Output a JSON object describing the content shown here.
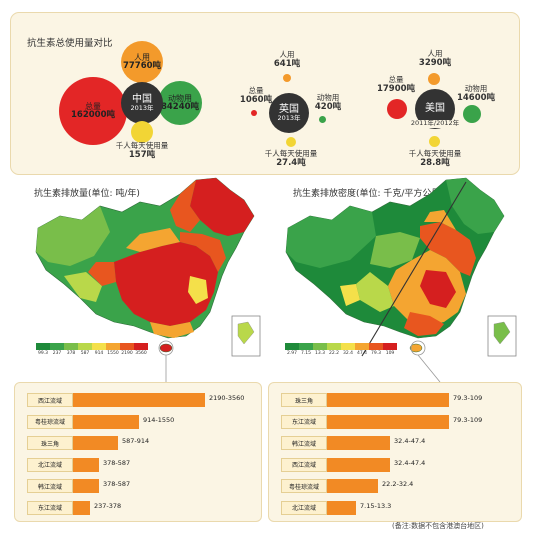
{
  "compare": {
    "title": "抗生素总使用量对比",
    "china": {
      "name": "中国",
      "year": "2013年",
      "total_label": "总量",
      "total_value": "162000吨",
      "human_label": "人用",
      "human_value": "77760吨",
      "animal_label": "动物用",
      "animal_value": "84240吨",
      "daily_label": "千人每天使用量",
      "daily_value": "157吨"
    },
    "uk": {
      "name": "英国",
      "year": "2013年",
      "total_label": "总量",
      "total_value": "1060吨",
      "human_label": "人用",
      "human_value": "641吨",
      "animal_label": "动物用",
      "animal_value": "420吨",
      "daily_label": "千人每天使用量",
      "daily_value": "27.4吨"
    },
    "usa": {
      "name": "美国",
      "year": "2011年/2012年",
      "total_label": "总量",
      "total_value": "17900吨",
      "human_label": "人用",
      "human_value": "3290吨",
      "animal_label": "动物用",
      "animal_value": "14600吨",
      "daily_label": "千人每天使用量",
      "daily_value": "28.8吨"
    },
    "colors": {
      "human": "#f39a2b",
      "animal": "#3aa34a",
      "total": "#e32626",
      "daily": "#f2d535",
      "center": "#333333"
    }
  },
  "map_left": {
    "title": "抗生素排放量(单位: 吨/年)",
    "legend": [
      "99.3",
      "237",
      "378",
      "587",
      "914",
      "1550",
      "2190",
      "3560"
    ],
    "legend_colors": [
      "#1e8a3a",
      "#3aa34a",
      "#79be4a",
      "#b9d84a",
      "#f4e04a",
      "#f4a531",
      "#e8561f",
      "#d51f1f"
    ]
  },
  "map_right": {
    "title": "抗生素排放密度(单位: 千克/平方公里·年)",
    "legend": [
      "2.97",
      "7.15",
      "13.3",
      "22.2",
      "32.4",
      "47.4",
      "79.3",
      "109"
    ],
    "legend_colors": [
      "#1e8a3a",
      "#3aa34a",
      "#79be4a",
      "#b9d84a",
      "#f4e04a",
      "#f4a531",
      "#e8561f",
      "#d51f1f"
    ]
  },
  "bars_left": [
    {
      "name": "西江流域",
      "range": "2190-3560",
      "fraction": 1.0
    },
    {
      "name": "粤桂琼流域",
      "range": "914-1550",
      "fraction": 0.5
    },
    {
      "name": "珠三角",
      "range": "587-914",
      "fraction": 0.34
    },
    {
      "name": "北江流域",
      "range": "378-587",
      "fraction": 0.2
    },
    {
      "name": "韩江流域",
      "range": "378-587",
      "fraction": 0.2
    },
    {
      "name": "东江流域",
      "range": "237-378",
      "fraction": 0.13
    }
  ],
  "bars_right": [
    {
      "name": "珠三角",
      "range": "79.3-109",
      "fraction": 1.0
    },
    {
      "name": "东江流域",
      "range": "79.3-109",
      "fraction": 1.0
    },
    {
      "name": "韩江流域",
      "range": "32.4-47.4",
      "fraction": 0.52
    },
    {
      "name": "西江流域",
      "range": "32.4-47.4",
      "fraction": 0.52
    },
    {
      "name": "粤桂琼流域",
      "range": "22.2-32.4",
      "fraction": 0.42
    },
    {
      "name": "北江流域",
      "range": "7.15-13.3",
      "fraction": 0.24
    }
  ],
  "note": "(备注:数据不包含港澳台地区)"
}
